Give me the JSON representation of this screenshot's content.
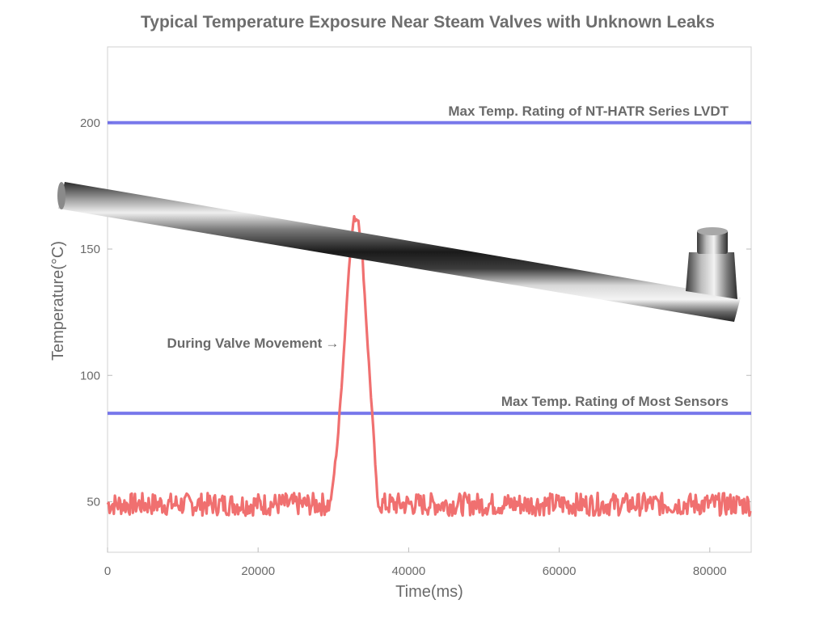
{
  "chart_data": {
    "type": "line",
    "title": "Typical Temperature Exposure Near Steam Valves with Unknown Leaks",
    "xlabel": "Time(ms)",
    "ylabel": "Temperature(°C)",
    "xlim": [
      0,
      85500
    ],
    "ylim": [
      30,
      230
    ],
    "x_ticks": [
      0,
      20000,
      40000,
      60000,
      80000
    ],
    "x_tick_labels": [
      "0",
      "20000",
      "40000",
      "60000",
      "80000"
    ],
    "y_ticks": [
      50,
      100,
      150,
      200
    ],
    "y_tick_labels": [
      "50",
      "100",
      "150",
      "200"
    ],
    "grid": false,
    "series": [
      {
        "color": "#f07070",
        "noise_baseline": 49,
        "noise_amplitude": 4.5,
        "points": [
          [
            0,
            49
          ],
          [
            29500,
            49
          ],
          [
            29800,
            53
          ],
          [
            30600,
            75
          ],
          [
            31400,
            110
          ],
          [
            32100,
            145
          ],
          [
            32700,
            162
          ],
          [
            33300,
            162
          ],
          [
            33800,
            150
          ],
          [
            34500,
            115
          ],
          [
            35300,
            78
          ],
          [
            35900,
            48
          ],
          [
            36200,
            49
          ],
          [
            85500,
            49
          ]
        ]
      }
    ],
    "reference_lines": [
      {
        "y": 200,
        "color": "#6060e8",
        "label": "Max Temp. Rating of NT-HATR Series LVDT"
      },
      {
        "y": 85,
        "color": "#6060e8",
        "label": "Max Temp. Rating of Most Sensors"
      }
    ],
    "annotations": [
      {
        "text": "During Valve Movement",
        "arrow": "→",
        "x": 28500,
        "y": 111
      }
    ],
    "overlay_image": "steel-lvdt-rod-photo"
  }
}
